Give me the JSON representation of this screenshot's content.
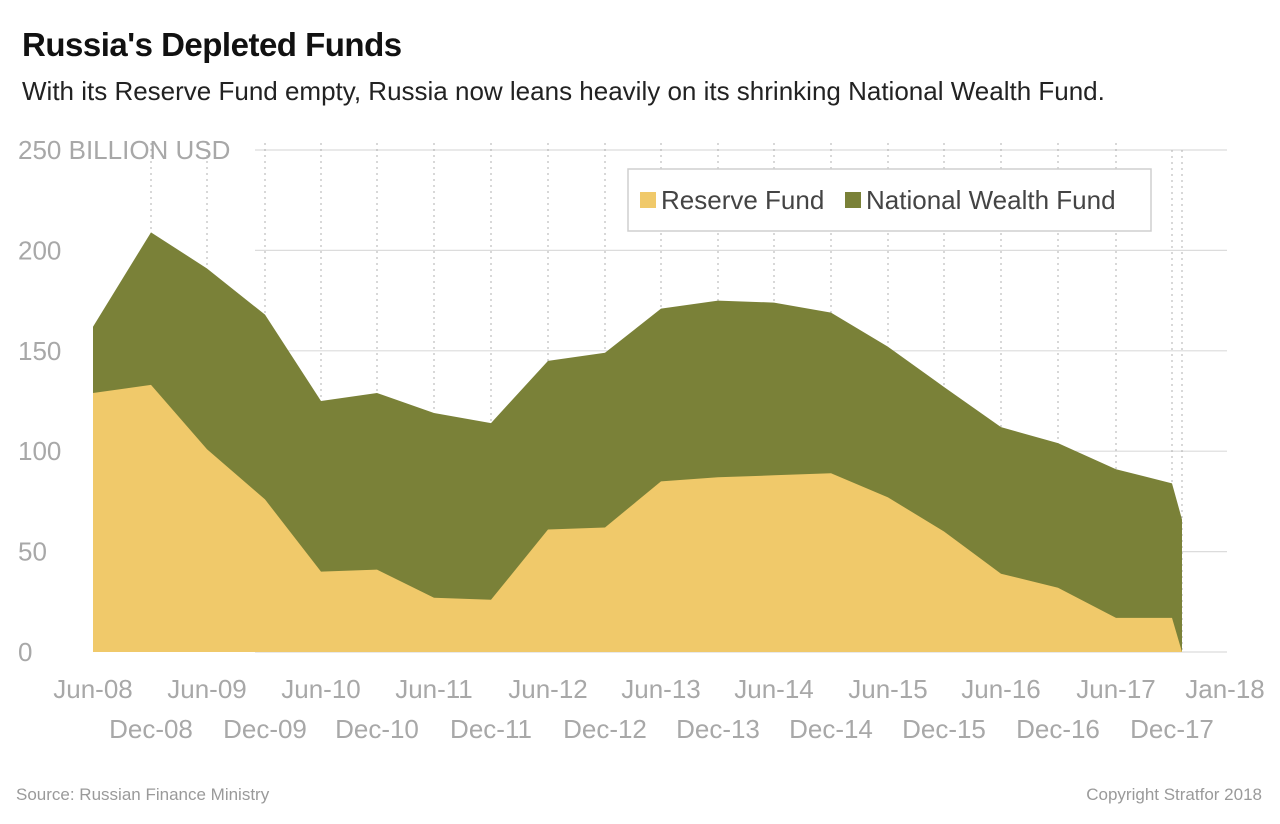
{
  "title": "Russia's Depleted Funds",
  "subtitle": "With its Reserve Fund empty, Russia now leans heavily on its shrinking National Wealth Fund.",
  "source": "Source: Russian Finance Ministry",
  "copyright": "Copyright Stratfor 2018",
  "colors": {
    "reserve": "#f0c96a",
    "wealth": "#7a8138",
    "grid": "#dcdcdc",
    "tick": "#a8a8a8"
  },
  "chart_data": {
    "type": "area",
    "stacked": true,
    "x": [
      "Jun-08",
      "Dec-08",
      "Jun-09",
      "Dec-09",
      "Jun-10",
      "Dec-10",
      "Jun-11",
      "Dec-11",
      "Jun-12",
      "Dec-12",
      "Jun-13",
      "Dec-13",
      "Jun-14",
      "Dec-14",
      "Jun-15",
      "Dec-15",
      "Jun-16",
      "Dec-16",
      "Jun-17",
      "Dec-17",
      "Jan-18"
    ],
    "series": [
      {
        "name": "Reserve Fund",
        "color": "#f0c96a",
        "values": [
          129,
          133,
          101,
          76,
          40,
          41,
          27,
          26,
          61,
          62,
          85,
          87,
          88,
          89,
          77,
          60,
          39,
          32,
          17,
          17,
          0
        ]
      },
      {
        "name": "National Wealth Fund",
        "color": "#7a8138",
        "values": [
          33,
          76,
          90,
          92,
          85,
          88,
          92,
          88,
          84,
          87,
          86,
          88,
          86,
          80,
          75,
          72,
          73,
          72,
          74,
          67,
          66
        ]
      }
    ],
    "ylim": [
      0,
      250
    ],
    "yticks": [
      "0",
      "50",
      "100",
      "150",
      "200",
      "250 BILLION USD"
    ],
    "ytick_values": [
      0,
      50,
      100,
      150,
      200,
      250
    ],
    "xlabel": "",
    "ylabel": "",
    "grid": true,
    "legend": "top-right"
  }
}
